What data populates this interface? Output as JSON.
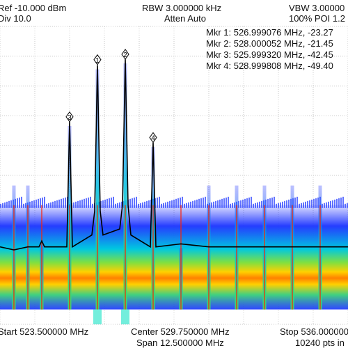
{
  "header": {
    "ref_level": "Ref -10.000 dBm",
    "div": "Div 10.0",
    "rbw": "RBW 3.000000 kHz",
    "atten": "Atten Auto",
    "vbw": "VBW 3.00000",
    "poi": "100% POI 1.2"
  },
  "markers": {
    "table": [
      "Mkr 1: 526.999076 MHz, -23.27",
      "Mkr 2: 528.000052 MHz, -21.45",
      "Mkr 3: 525.999320 MHz, -42.45",
      "Mkr 4: 528.999808 MHz, -49.40"
    ],
    "points": [
      {
        "label": "1",
        "freq_mhz": 526.999076,
        "level_dbm": -23.27
      },
      {
        "label": "2",
        "freq_mhz": 528.000052,
        "level_dbm": -21.45
      },
      {
        "label": "3",
        "freq_mhz": 525.99932,
        "level_dbm": -42.45
      },
      {
        "label": "4",
        "freq_mhz": 528.999808,
        "level_dbm": -49.4
      }
    ]
  },
  "footer": {
    "start": "Start 523.500000 MHz",
    "center": "Center 529.750000 MHz",
    "stop": "Stop 536.000000",
    "span": "Span 12.500000 MHz",
    "points": "10240 pts in"
  },
  "colors": {
    "grid": "#c8c8c8",
    "trace": "#000000",
    "density_low": "#1a33ff",
    "density_mid": "#00d0c0",
    "density_high": "#ffb000",
    "density_core": "#e01010"
  },
  "chart_data": {
    "type": "line",
    "title": "",
    "xlabel": "",
    "ylabel": "",
    "xlim": [
      523.5,
      536.0
    ],
    "ylim": [
      -110,
      -10
    ],
    "grid": true,
    "x": [
      523.5,
      524.0,
      524.5,
      524.9,
      525.0,
      525.1,
      525.9,
      526.0,
      526.1,
      526.8,
      526.9,
      527.0,
      527.1,
      527.2,
      527.8,
      527.9,
      528.0,
      528.1,
      528.2,
      528.9,
      529.0,
      529.1,
      530.0,
      531.0,
      532.0,
      533.0,
      534.0,
      535.0,
      536.0
    ],
    "series": [
      {
        "values": [
          -84,
          -85,
          -84,
          -84,
          -82,
          -84,
          -84,
          -42,
          -84,
          -80,
          -72,
          -23,
          -72,
          -80,
          -78,
          -70,
          -21,
          -70,
          -80,
          -84,
          -49,
          -84,
          -83,
          -84,
          -84,
          -84,
          -84,
          -84,
          -84
        ]
      }
    ]
  }
}
